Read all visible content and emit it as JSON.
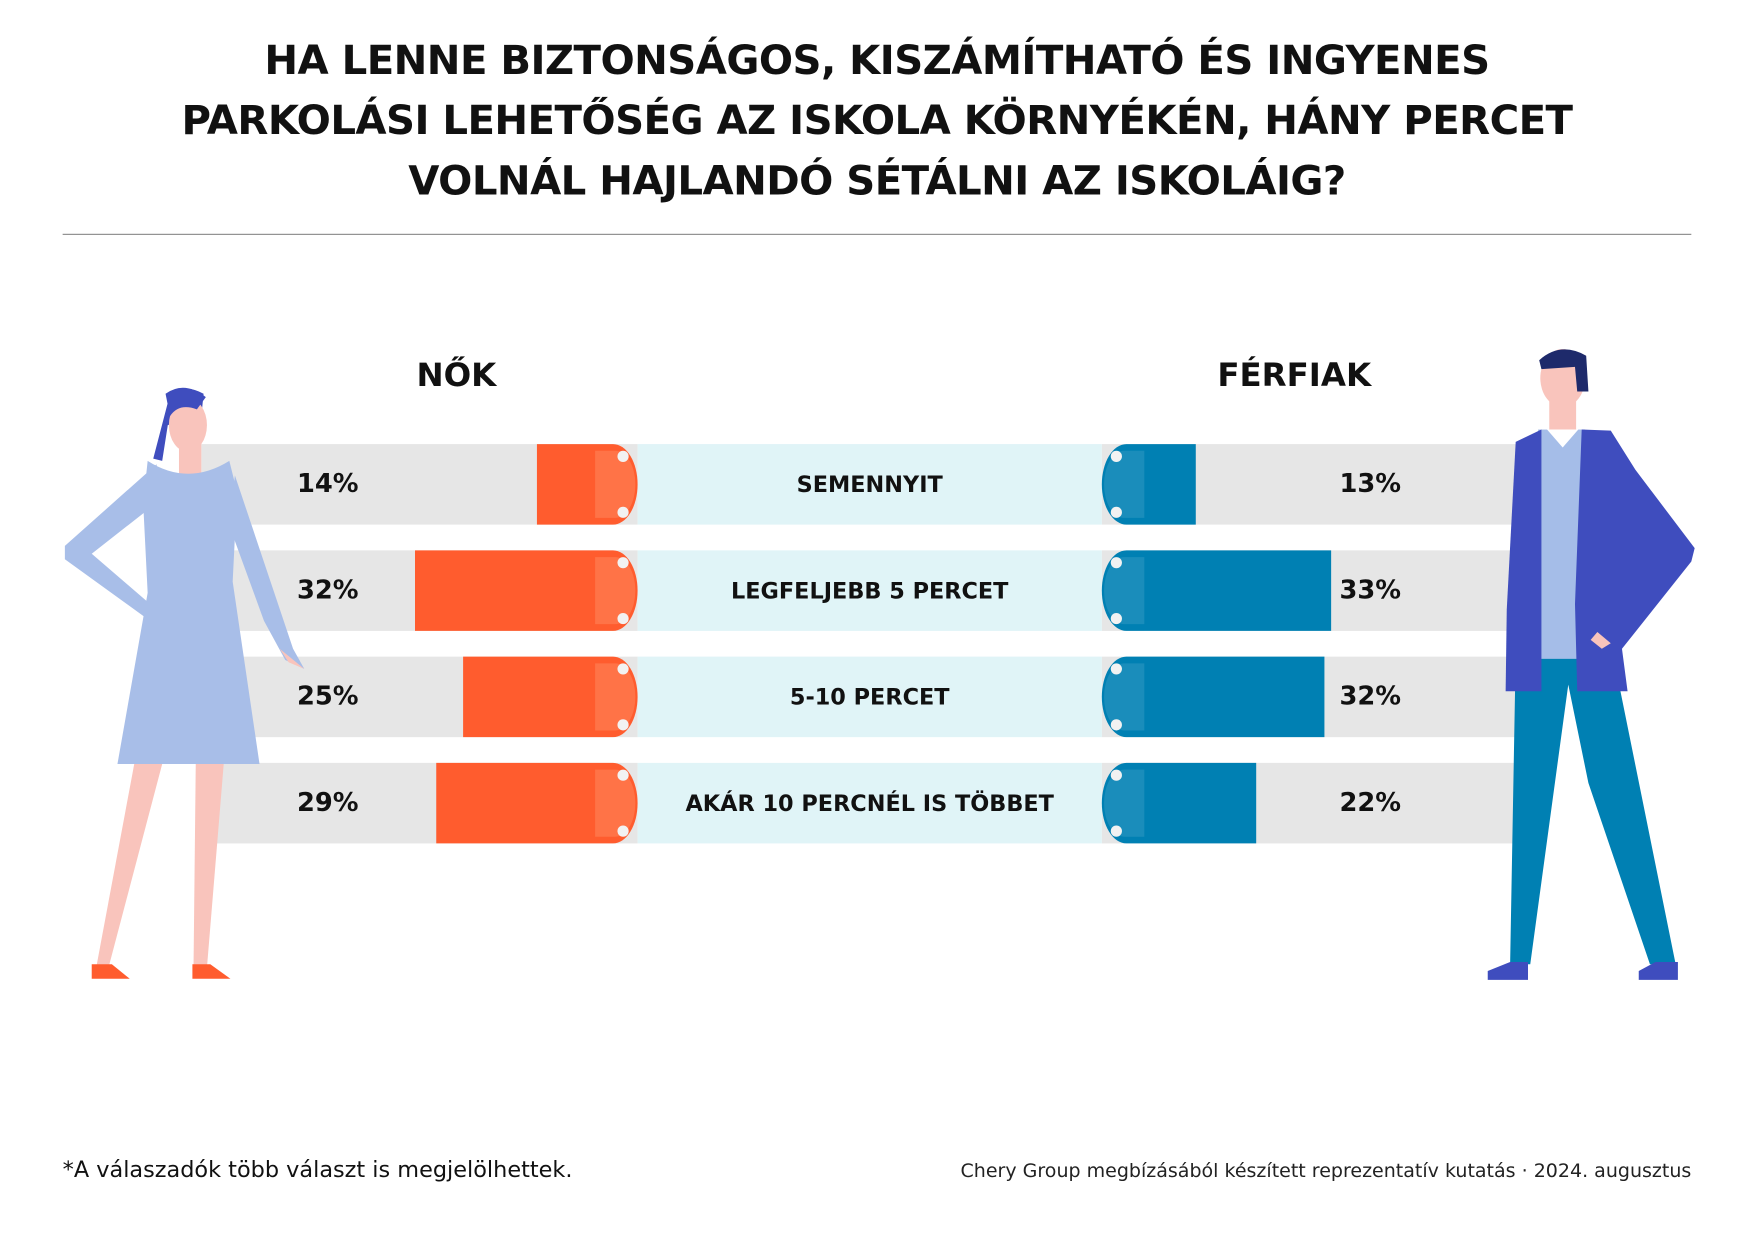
{
  "title_lines": [
    "HA LENNE BIZTONSÁGOS, KISZÁMÍTHATÓ ÉS INGYENES",
    "PARKOLÁSI LEHETŐSÉG AZ ISKOLA KÖRNYÉKÉN, HÁNY PERCET",
    "VOLNÁL HAJLANDÓ SÉTÁLNI AZ ISKOLÁIG?"
  ],
  "footer": {
    "note": "*A válaszadók több választ is megjelölhettek.",
    "source": "Chery Group megbízásából készített reprezentatív kutatás · 2024. augusztus"
  },
  "colors": {
    "women": "#FF5C2E",
    "men": "#0080B3",
    "track": "#E6E6E6",
    "center": "#E0F4F7"
  },
  "chart_data": {
    "type": "bar",
    "orientation": "horizontal-butterfly",
    "categories": [
      "SEMENNYIT",
      "LEGFELJEBB 5 PERCET",
      "5-10 PERCET",
      "AKÁR 10 PERCNÉL IS TÖBBET"
    ],
    "series": [
      {
        "name": "NŐK",
        "values": [
          14,
          32,
          25,
          29
        ],
        "labels": [
          "14%",
          "32%",
          "25%",
          "29%"
        ]
      },
      {
        "name": "FÉRFIAK",
        "values": [
          13,
          33,
          32,
          22
        ],
        "labels": [
          "13%",
          "33%",
          "32%",
          "22%"
        ]
      }
    ],
    "unit": "%"
  }
}
